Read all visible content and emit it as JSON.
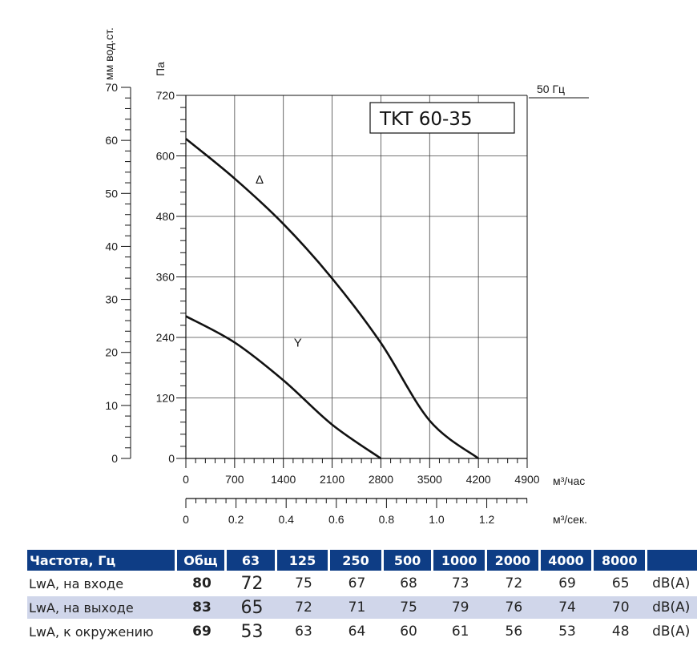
{
  "chart_data": {
    "type": "line",
    "title": "TKT 60-35",
    "frequency_label": "50 Гц",
    "left_axis_label": "мм вод.ст.",
    "pa_axis_label": "Па",
    "x_label_hour": "м³/час",
    "x_label_sec": "м³/сек.",
    "mmwg_ticks": [
      "70",
      "60",
      "50",
      "40",
      "30",
      "20",
      "10",
      "0"
    ],
    "pa_ticks": [
      "720",
      "600",
      "480",
      "360",
      "240",
      "120",
      "0"
    ],
    "x_ticks_hour": [
      "0",
      "700",
      "1400",
      "2100",
      "2800",
      "3500",
      "4200",
      "4900"
    ],
    "x_ticks_sec": [
      "0",
      "0.2",
      "0.4",
      "0.6",
      "0.8",
      "1.0",
      "1.2"
    ],
    "xlim_hour": [
      0,
      4900
    ],
    "ylim_pa": [
      0,
      720
    ],
    "grid": true,
    "series": [
      {
        "name": "Δ",
        "x": [
          0,
          700,
          1400,
          2100,
          2800,
          3500,
          4200
        ],
        "y": [
          634,
          555,
          465,
          357,
          229,
          75,
          0
        ]
      },
      {
        "name": "Y",
        "x": [
          0,
          700,
          1400,
          2100,
          2800
        ],
        "y": [
          282,
          230,
          155,
          67,
          0
        ]
      }
    ]
  },
  "noise_table": {
    "headers": [
      "Частота, Гц",
      "Общ",
      "63",
      "125",
      "250",
      "500",
      "1000",
      "2000",
      "4000",
      "8000",
      ""
    ],
    "rows": [
      {
        "label": "LwA, на входе",
        "total": "80",
        "values": [
          "72",
          "75",
          "67",
          "68",
          "73",
          "72",
          "69",
          "65"
        ],
        "unit": "dB(A)"
      },
      {
        "label": "LwA, на выходе",
        "total": "83",
        "values": [
          "65",
          "72",
          "71",
          "75",
          "79",
          "76",
          "74",
          "70"
        ],
        "unit": "dB(A)"
      },
      {
        "label": "LwA, к окружению",
        "total": "69",
        "values": [
          "53",
          "63",
          "64",
          "60",
          "61",
          "56",
          "53",
          "48"
        ],
        "unit": "dB(A)"
      }
    ]
  }
}
